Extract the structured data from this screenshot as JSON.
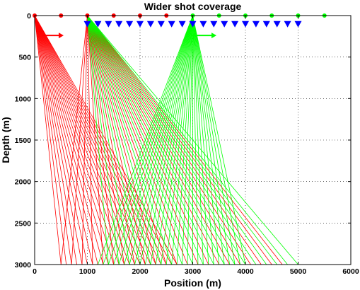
{
  "chart_data": {
    "type": "line",
    "title": "Wider shot coverage",
    "xlabel": "Position (m)",
    "ylabel": "Depth (m)",
    "xlim": [
      0,
      6000
    ],
    "ylim": [
      0,
      3000
    ],
    "y_reversed": true,
    "grid": "dotted",
    "xticks": [
      0,
      1000,
      2000,
      3000,
      4000,
      5000,
      6000
    ],
    "yticks": [
      0,
      500,
      1000,
      1500,
      2000,
      2500,
      3000
    ],
    "shots": {
      "red": [
        0,
        500,
        1000,
        1500,
        2000,
        2500
      ],
      "green": [
        3000,
        3500,
        4000,
        4500,
        5000,
        5500
      ]
    },
    "receivers": {
      "start": 1000,
      "end": 5000,
      "spacing": 200,
      "depth": 100,
      "color": "#0000ff"
    },
    "ray_groups": [
      {
        "color": "#ff0000",
        "source_x": 0,
        "end_depth": 3000,
        "end_x_min": 500,
        "end_x_max": 2700,
        "end_x_step": 100
      },
      {
        "color": "#ff0000",
        "source_x": 1000,
        "end_depth": 3000,
        "end_x_min": 500,
        "end_x_max": 4800,
        "end_x_step": 200
      },
      {
        "color": "#00ff00",
        "source_x": 3000,
        "end_depth": 3000,
        "end_x_min": 1200,
        "end_x_max": 4000,
        "end_x_step": 100
      },
      {
        "color": "#00ff00",
        "source_x": 1000,
        "end_depth": 3000,
        "end_x_min": 1400,
        "end_x_max": 5000,
        "end_x_step": 200
      }
    ],
    "arrows": [
      {
        "color": "#ff0000",
        "x_from": 150,
        "x_to": 550,
        "depth": 240
      },
      {
        "color": "#00ff00",
        "x_from": 3000,
        "x_to": 3450,
        "depth": 240
      }
    ]
  }
}
